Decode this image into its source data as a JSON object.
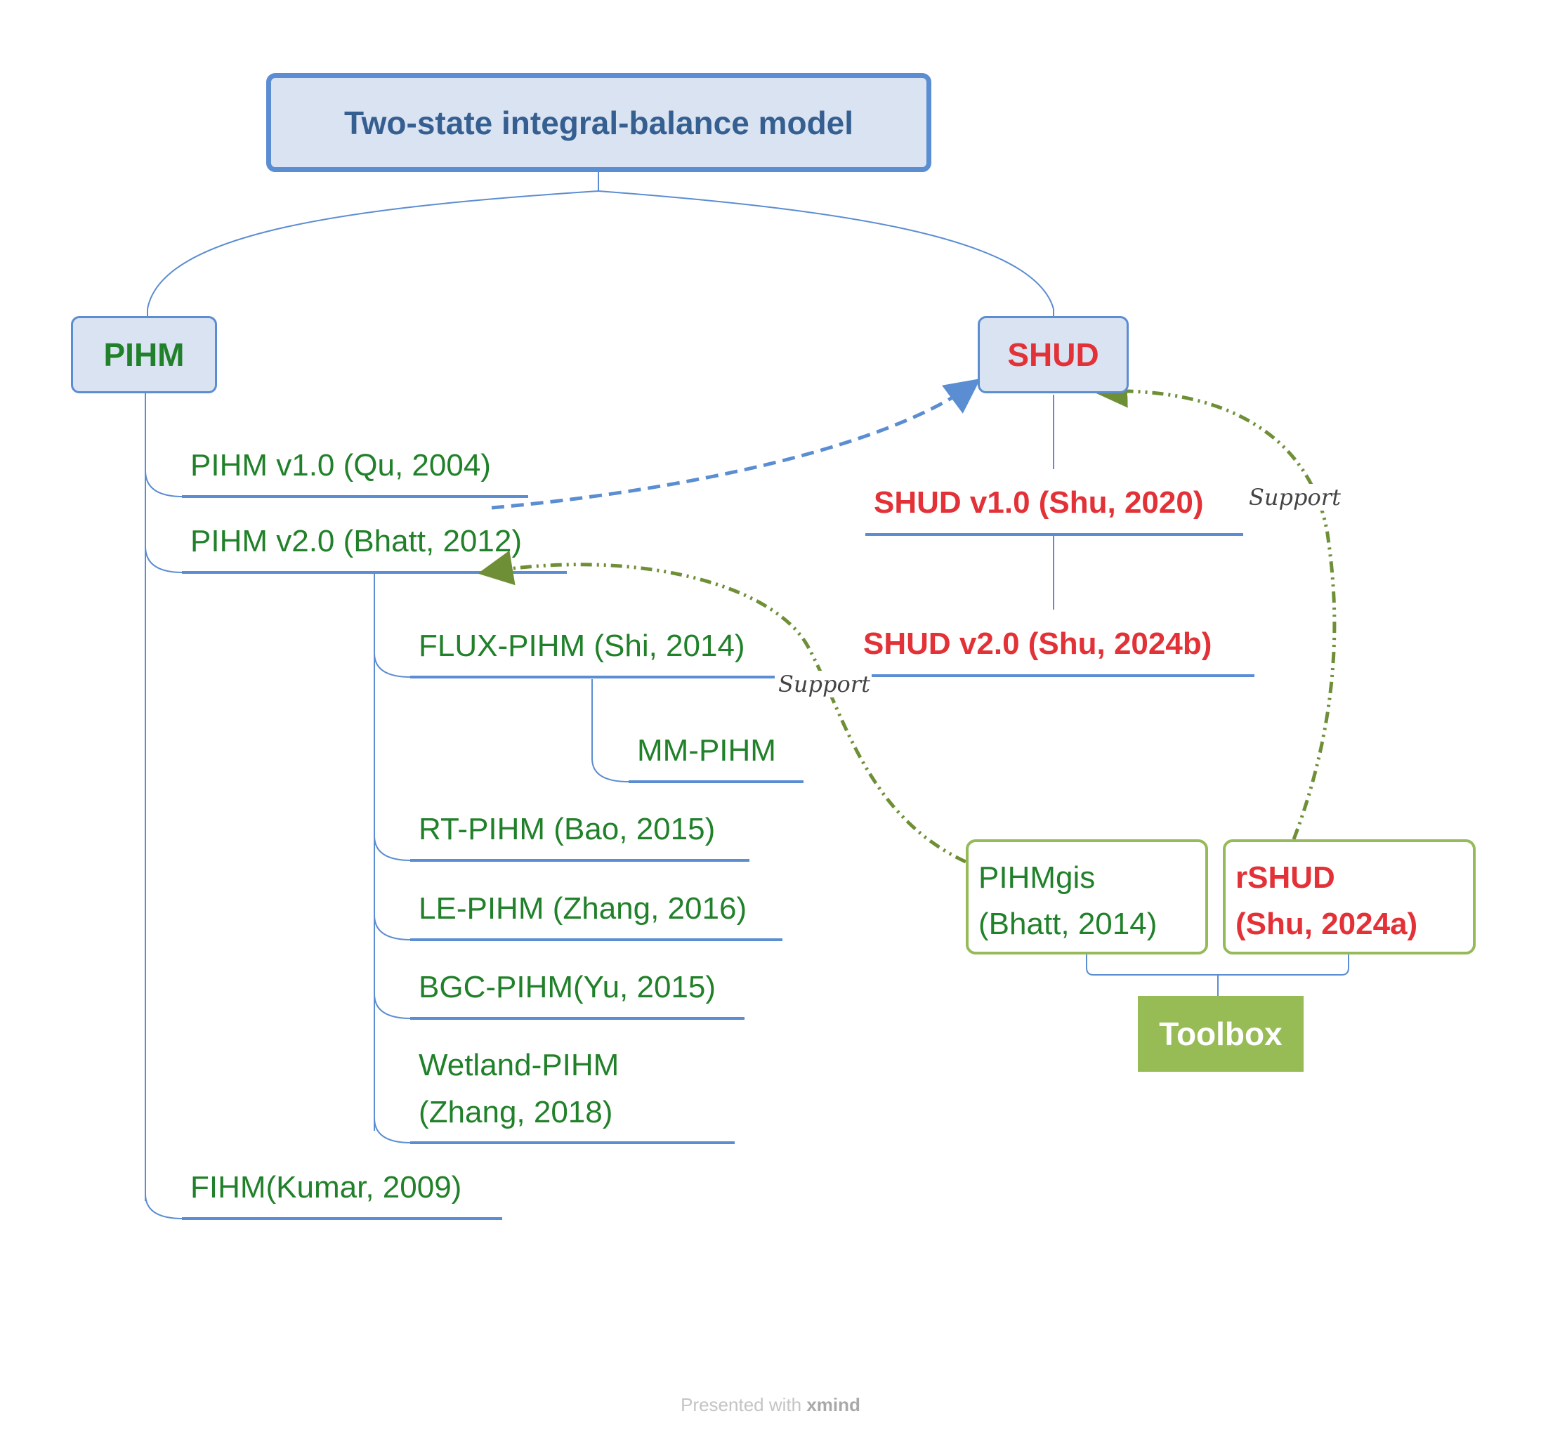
{
  "root": {
    "label": "Two-state integral-balance model"
  },
  "pihm": {
    "label": "PIHM",
    "children": [
      "PIHM v1.0 (Qu, 2004)",
      "PIHM v2.0 (Bhatt, 2012)",
      "FLUX-PIHM (Shi, 2014)",
      "MM-PIHM",
      "RT-PIHM (Bao, 2015)",
      "LE-PIHM (Zhang, 2016)",
      "BGC-PIHM(Yu, 2015)",
      "Wetland-PIHM",
      "(Zhang, 2018)",
      "FIHM(Kumar, 2009)"
    ]
  },
  "shud": {
    "label": "SHUD",
    "children": [
      "SHUD v1.0 (Shu, 2020)",
      "SHUD v2.0 (Shu, 2024b)"
    ]
  },
  "tools": {
    "label": "Toolbox",
    "pihmgis": [
      "PIHMgis",
      "(Bhatt, 2014)"
    ],
    "rshud": [
      "rSHUD",
      "(Shu, 2024a)"
    ]
  },
  "relations": {
    "support_label": "Support"
  },
  "footer": {
    "prefix": "Presented with",
    "brand": "xmind"
  },
  "colors": {
    "blue": "#5b8dd2",
    "green": "#21812a",
    "red": "#e23237",
    "olive": "#6f8f37",
    "toolbox": "#97bc55"
  }
}
